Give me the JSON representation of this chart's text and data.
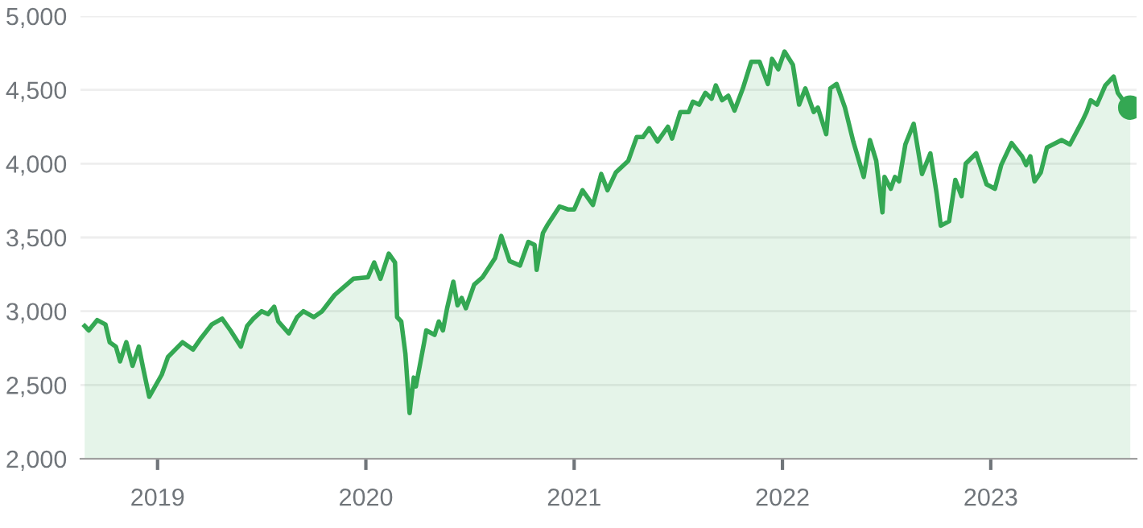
{
  "chart_data": {
    "type": "area",
    "xlim": [
      2018.63,
      2023.7
    ],
    "ylim": [
      2000,
      5000
    ],
    "xticks": [
      2019,
      2020,
      2021,
      2022,
      2023
    ],
    "yticks": [
      {
        "value": 2000,
        "label": "2,000"
      },
      {
        "value": 2500,
        "label": "2,500"
      },
      {
        "value": 3000,
        "label": "3,000"
      },
      {
        "value": 3500,
        "label": "3,500"
      },
      {
        "value": 4000,
        "label": "4,000"
      },
      {
        "value": 4500,
        "label": "4,500"
      },
      {
        "value": 5000,
        "label": "5,000"
      }
    ],
    "grid": "y",
    "series": [
      {
        "color": "#34a853",
        "x": [
          2018.65,
          2018.67,
          2018.71,
          2018.75,
          2018.77,
          2018.8,
          2018.82,
          2018.85,
          2018.88,
          2018.91,
          2018.93,
          2018.96,
          2019.02,
          2019.05,
          2019.12,
          2019.17,
          2019.21,
          2019.26,
          2019.31,
          2019.35,
          2019.4,
          2019.43,
          2019.46,
          2019.5,
          2019.53,
          2019.56,
          2019.58,
          2019.63,
          2019.67,
          2019.7,
          2019.75,
          2019.79,
          2019.85,
          2019.94,
          2020.01,
          2020.04,
          2020.07,
          2020.11,
          2020.14,
          2020.15,
          2020.17,
          2020.19,
          2020.21,
          2020.23,
          2020.24,
          2020.28,
          2020.29,
          2020.33,
          2020.35,
          2020.37,
          2020.39,
          2020.42,
          2020.44,
          2020.46,
          2020.48,
          2020.52,
          2020.56,
          2020.62,
          2020.65,
          2020.69,
          2020.74,
          2020.78,
          2020.81,
          2020.82,
          2020.85,
          2020.87,
          2020.93,
          2020.97,
          2021.0,
          2021.04,
          2021.09,
          2021.13,
          2021.16,
          2021.2,
          2021.26,
          2021.3,
          2021.33,
          2021.36,
          2021.4,
          2021.45,
          2021.47,
          2021.51,
          2021.55,
          2021.57,
          2021.6,
          2021.63,
          2021.66,
          2021.68,
          2021.71,
          2021.74,
          2021.77,
          2021.81,
          2021.85,
          2021.89,
          2021.93,
          2021.95,
          2021.98,
          2022.01,
          2022.05,
          2022.08,
          2022.11,
          2022.15,
          2022.17,
          2022.21,
          2022.23,
          2022.26,
          2022.3,
          2022.34,
          2022.39,
          2022.42,
          2022.45,
          2022.48,
          2022.49,
          2022.52,
          2022.54,
          2022.56,
          2022.59,
          2022.63,
          2022.67,
          2022.71,
          2022.74,
          2022.76,
          2022.8,
          2022.83,
          2022.86,
          2022.88,
          2022.93,
          2022.98,
          2023.02,
          2023.05,
          2023.1,
          2023.15,
          2023.17,
          2023.19,
          2023.21,
          2023.24,
          2023.27,
          2023.34,
          2023.38,
          2023.44,
          2023.46,
          2023.48,
          2023.51,
          2023.55,
          2023.59,
          2023.61,
          2023.65,
          2023.67
        ],
        "values": [
          2900,
          2870,
          2940,
          2910,
          2790,
          2760,
          2660,
          2790,
          2630,
          2760,
          2620,
          2420,
          2570,
          2690,
          2790,
          2740,
          2820,
          2910,
          2950,
          2870,
          2760,
          2900,
          2950,
          3000,
          2980,
          3030,
          2930,
          2850,
          2960,
          3000,
          2960,
          3000,
          3110,
          3220,
          3230,
          3330,
          3220,
          3390,
          3330,
          2960,
          2930,
          2710,
          2310,
          2550,
          2490,
          2790,
          2870,
          2840,
          2930,
          2870,
          3020,
          3200,
          3040,
          3090,
          3020,
          3180,
          3230,
          3360,
          3510,
          3340,
          3310,
          3470,
          3450,
          3280,
          3530,
          3580,
          3710,
          3690,
          3690,
          3820,
          3720,
          3930,
          3820,
          3940,
          4020,
          4180,
          4180,
          4240,
          4150,
          4250,
          4170,
          4350,
          4350,
          4420,
          4400,
          4480,
          4440,
          4530,
          4430,
          4460,
          4360,
          4510,
          4690,
          4690,
          4540,
          4710,
          4640,
          4760,
          4670,
          4400,
          4510,
          4350,
          4380,
          4200,
          4510,
          4540,
          4380,
          4150,
          3910,
          4160,
          4020,
          3670,
          3910,
          3830,
          3910,
          3880,
          4130,
          4270,
          3930,
          4070,
          3800,
          3580,
          3610,
          3890,
          3780,
          4000,
          4070,
          3860,
          3830,
          3990,
          4140,
          4050,
          3990,
          4050,
          3880,
          3940,
          4110,
          4160,
          4130,
          4290,
          4350,
          4430,
          4400,
          4530,
          4590,
          4480,
          4400,
          4380
        ]
      },
      {
        "type": "scatter",
        "color": "#34a853",
        "marker": "circle",
        "x": [
          2023.67
        ],
        "values": [
          4380
        ]
      }
    ]
  }
}
